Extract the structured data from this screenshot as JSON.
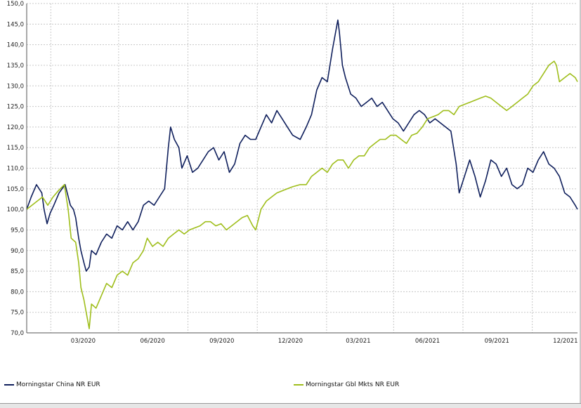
{
  "chart_data": {
    "type": "line",
    "title": "",
    "xlabel": "",
    "ylabel": "",
    "ylim": [
      70,
      150
    ],
    "grid": true,
    "legend_position": "bottom",
    "y_ticks": [
      "70,0",
      "75,0",
      "80,0",
      "85,0",
      "90,0",
      "95,0",
      "100,0",
      "105,0",
      "110,0",
      "115,0",
      "120,0",
      "125,0",
      "130,0",
      "135,0",
      "140,0",
      "145,0",
      "150,0"
    ],
    "x_ticks": [
      "03/2020",
      "06/2020",
      "09/2020",
      "12/2020",
      "03/2021",
      "06/2021",
      "09/2021",
      "12/2021"
    ],
    "x_range": [
      "2019-12-31",
      "2021-12-31"
    ],
    "series": [
      {
        "name": "Morningstar China NR EUR",
        "color": "#0f1f5c",
        "points": [
          [
            "2019-12-31",
            100
          ],
          [
            "2020-01-06",
            103
          ],
          [
            "2020-01-13",
            106
          ],
          [
            "2020-01-20",
            104
          ],
          [
            "2020-01-23",
            100
          ],
          [
            "2020-01-27",
            96.5
          ],
          [
            "2020-01-31",
            99
          ],
          [
            "2020-02-05",
            101
          ],
          [
            "2020-02-12",
            104
          ],
          [
            "2020-02-20",
            106
          ],
          [
            "2020-02-27",
            101
          ],
          [
            "2020-03-02",
            100
          ],
          [
            "2020-03-05",
            98
          ],
          [
            "2020-03-09",
            93
          ],
          [
            "2020-03-12",
            90
          ],
          [
            "2020-03-16",
            87
          ],
          [
            "2020-03-19",
            85
          ],
          [
            "2020-03-23",
            86
          ],
          [
            "2020-03-26",
            90
          ],
          [
            "2020-04-01",
            89
          ],
          [
            "2020-04-08",
            92
          ],
          [
            "2020-04-15",
            94
          ],
          [
            "2020-04-22",
            93
          ],
          [
            "2020-04-29",
            96
          ],
          [
            "2020-05-06",
            95
          ],
          [
            "2020-05-13",
            97
          ],
          [
            "2020-05-20",
            95
          ],
          [
            "2020-05-27",
            97
          ],
          [
            "2020-06-03",
            101
          ],
          [
            "2020-06-10",
            102
          ],
          [
            "2020-06-17",
            101
          ],
          [
            "2020-06-24",
            103
          ],
          [
            "2020-07-01",
            105
          ],
          [
            "2020-07-06",
            115
          ],
          [
            "2020-07-09",
            120
          ],
          [
            "2020-07-14",
            117
          ],
          [
            "2020-07-20",
            115
          ],
          [
            "2020-07-24",
            110
          ],
          [
            "2020-07-31",
            113
          ],
          [
            "2020-08-07",
            109
          ],
          [
            "2020-08-14",
            110
          ],
          [
            "2020-08-21",
            112
          ],
          [
            "2020-08-28",
            114
          ],
          [
            "2020-09-04",
            115
          ],
          [
            "2020-09-11",
            112
          ],
          [
            "2020-09-18",
            114
          ],
          [
            "2020-09-25",
            109
          ],
          [
            "2020-10-02",
            111
          ],
          [
            "2020-10-09",
            116
          ],
          [
            "2020-10-16",
            118
          ],
          [
            "2020-10-23",
            117
          ],
          [
            "2020-10-30",
            117
          ],
          [
            "2020-11-06",
            120
          ],
          [
            "2020-11-13",
            123
          ],
          [
            "2020-11-20",
            121
          ],
          [
            "2020-11-27",
            124
          ],
          [
            "2020-12-04",
            122
          ],
          [
            "2020-12-11",
            120
          ],
          [
            "2020-12-18",
            118
          ],
          [
            "2020-12-28",
            117
          ],
          [
            "2021-01-05",
            120
          ],
          [
            "2021-01-12",
            123
          ],
          [
            "2021-01-19",
            129
          ],
          [
            "2021-01-26",
            132
          ],
          [
            "2021-02-02",
            131
          ],
          [
            "2021-02-09",
            139
          ],
          [
            "2021-02-16",
            146
          ],
          [
            "2021-02-18",
            143
          ],
          [
            "2021-02-22",
            135
          ],
          [
            "2021-02-26",
            132
          ],
          [
            "2021-03-05",
            128
          ],
          [
            "2021-03-12",
            127
          ],
          [
            "2021-03-19",
            125
          ],
          [
            "2021-03-26",
            126
          ],
          [
            "2021-04-02",
            127
          ],
          [
            "2021-04-09",
            125
          ],
          [
            "2021-04-16",
            126
          ],
          [
            "2021-04-23",
            124
          ],
          [
            "2021-04-30",
            122
          ],
          [
            "2021-05-07",
            121
          ],
          [
            "2021-05-14",
            119
          ],
          [
            "2021-05-21",
            121
          ],
          [
            "2021-05-28",
            123
          ],
          [
            "2021-06-04",
            124
          ],
          [
            "2021-06-11",
            123
          ],
          [
            "2021-06-18",
            121
          ],
          [
            "2021-06-25",
            122
          ],
          [
            "2021-07-02",
            121
          ],
          [
            "2021-07-09",
            120
          ],
          [
            "2021-07-16",
            119
          ],
          [
            "2021-07-23",
            111
          ],
          [
            "2021-07-27",
            104
          ],
          [
            "2021-08-03",
            108
          ],
          [
            "2021-08-10",
            112
          ],
          [
            "2021-08-17",
            108
          ],
          [
            "2021-08-24",
            103
          ],
          [
            "2021-08-31",
            107
          ],
          [
            "2021-09-07",
            112
          ],
          [
            "2021-09-14",
            111
          ],
          [
            "2021-09-21",
            108
          ],
          [
            "2021-09-28",
            110
          ],
          [
            "2021-10-05",
            106
          ],
          [
            "2021-10-12",
            105
          ],
          [
            "2021-10-19",
            106
          ],
          [
            "2021-10-26",
            110
          ],
          [
            "2021-11-02",
            109
          ],
          [
            "2021-11-09",
            112
          ],
          [
            "2021-11-16",
            114
          ],
          [
            "2021-11-23",
            111
          ],
          [
            "2021-11-30",
            110
          ],
          [
            "2021-12-07",
            108
          ],
          [
            "2021-12-14",
            104
          ],
          [
            "2021-12-21",
            103
          ],
          [
            "2021-12-28",
            101
          ],
          [
            "2021-12-31",
            100
          ]
        ]
      },
      {
        "name": "Morningstar Gbl Mkts NR EUR",
        "color": "#9fbe1b",
        "points": [
          [
            "2019-12-31",
            100
          ],
          [
            "2020-01-07",
            101
          ],
          [
            "2020-01-14",
            102
          ],
          [
            "2020-01-21",
            103
          ],
          [
            "2020-01-28",
            101
          ],
          [
            "2020-02-04",
            103
          ],
          [
            "2020-02-11",
            104.5
          ],
          [
            "2020-02-19",
            106
          ],
          [
            "2020-02-24",
            100
          ],
          [
            "2020-02-28",
            93
          ],
          [
            "2020-03-05",
            92
          ],
          [
            "2020-03-09",
            87
          ],
          [
            "2020-03-12",
            81
          ],
          [
            "2020-03-16",
            78
          ],
          [
            "2020-03-19",
            75
          ],
          [
            "2020-03-23",
            71
          ],
          [
            "2020-03-26",
            77
          ],
          [
            "2020-04-01",
            76
          ],
          [
            "2020-04-08",
            79
          ],
          [
            "2020-04-15",
            82
          ],
          [
            "2020-04-22",
            81
          ],
          [
            "2020-04-29",
            84
          ],
          [
            "2020-05-06",
            85
          ],
          [
            "2020-05-13",
            84
          ],
          [
            "2020-05-20",
            87
          ],
          [
            "2020-05-27",
            88
          ],
          [
            "2020-06-03",
            90
          ],
          [
            "2020-06-08",
            93
          ],
          [
            "2020-06-15",
            91
          ],
          [
            "2020-06-22",
            92
          ],
          [
            "2020-06-29",
            91
          ],
          [
            "2020-07-06",
            93
          ],
          [
            "2020-07-13",
            94
          ],
          [
            "2020-07-20",
            95
          ],
          [
            "2020-07-27",
            94
          ],
          [
            "2020-08-03",
            95
          ],
          [
            "2020-08-10",
            95.5
          ],
          [
            "2020-08-17",
            96
          ],
          [
            "2020-08-24",
            97
          ],
          [
            "2020-08-31",
            97
          ],
          [
            "2020-09-07",
            96
          ],
          [
            "2020-09-14",
            96.5
          ],
          [
            "2020-09-21",
            95
          ],
          [
            "2020-09-28",
            96
          ],
          [
            "2020-10-05",
            97
          ],
          [
            "2020-10-12",
            98
          ],
          [
            "2020-10-19",
            98.5
          ],
          [
            "2020-10-26",
            96
          ],
          [
            "2020-10-30",
            95
          ],
          [
            "2020-11-06",
            100
          ],
          [
            "2020-11-13",
            102
          ],
          [
            "2020-11-20",
            103
          ],
          [
            "2020-11-27",
            104
          ],
          [
            "2020-12-04",
            104.5
          ],
          [
            "2020-12-11",
            105
          ],
          [
            "2020-12-18",
            105.5
          ],
          [
            "2020-12-28",
            106
          ],
          [
            "2021-01-05",
            106
          ],
          [
            "2021-01-12",
            108
          ],
          [
            "2021-01-19",
            109
          ],
          [
            "2021-01-26",
            110
          ],
          [
            "2021-02-02",
            109
          ],
          [
            "2021-02-09",
            111
          ],
          [
            "2021-02-16",
            112
          ],
          [
            "2021-02-23",
            112
          ],
          [
            "2021-03-02",
            110
          ],
          [
            "2021-03-09",
            112
          ],
          [
            "2021-03-16",
            113
          ],
          [
            "2021-03-23",
            113
          ],
          [
            "2021-03-30",
            115
          ],
          [
            "2021-04-06",
            116
          ],
          [
            "2021-04-13",
            117
          ],
          [
            "2021-04-20",
            117
          ],
          [
            "2021-04-27",
            118
          ],
          [
            "2021-05-04",
            118
          ],
          [
            "2021-05-11",
            117
          ],
          [
            "2021-05-18",
            116
          ],
          [
            "2021-05-25",
            118
          ],
          [
            "2021-06-01",
            118.5
          ],
          [
            "2021-06-08",
            120
          ],
          [
            "2021-06-15",
            122
          ],
          [
            "2021-06-22",
            122.5
          ],
          [
            "2021-06-29",
            123
          ],
          [
            "2021-07-06",
            124
          ],
          [
            "2021-07-13",
            124
          ],
          [
            "2021-07-20",
            123
          ],
          [
            "2021-07-27",
            125
          ],
          [
            "2021-08-03",
            125.5
          ],
          [
            "2021-08-10",
            126
          ],
          [
            "2021-08-17",
            126.5
          ],
          [
            "2021-08-24",
            127
          ],
          [
            "2021-08-31",
            127.5
          ],
          [
            "2021-09-07",
            127
          ],
          [
            "2021-09-14",
            126
          ],
          [
            "2021-09-21",
            125
          ],
          [
            "2021-09-28",
            124
          ],
          [
            "2021-10-05",
            125
          ],
          [
            "2021-10-12",
            126
          ],
          [
            "2021-10-19",
            127
          ],
          [
            "2021-10-26",
            128
          ],
          [
            "2021-11-02",
            130
          ],
          [
            "2021-11-09",
            131
          ],
          [
            "2021-11-16",
            133
          ],
          [
            "2021-11-23",
            135
          ],
          [
            "2021-11-30",
            136
          ],
          [
            "2021-12-03",
            135
          ],
          [
            "2021-12-07",
            131
          ],
          [
            "2021-12-14",
            132
          ],
          [
            "2021-12-21",
            133
          ],
          [
            "2021-12-28",
            132
          ],
          [
            "2021-12-31",
            131
          ]
        ]
      }
    ]
  }
}
